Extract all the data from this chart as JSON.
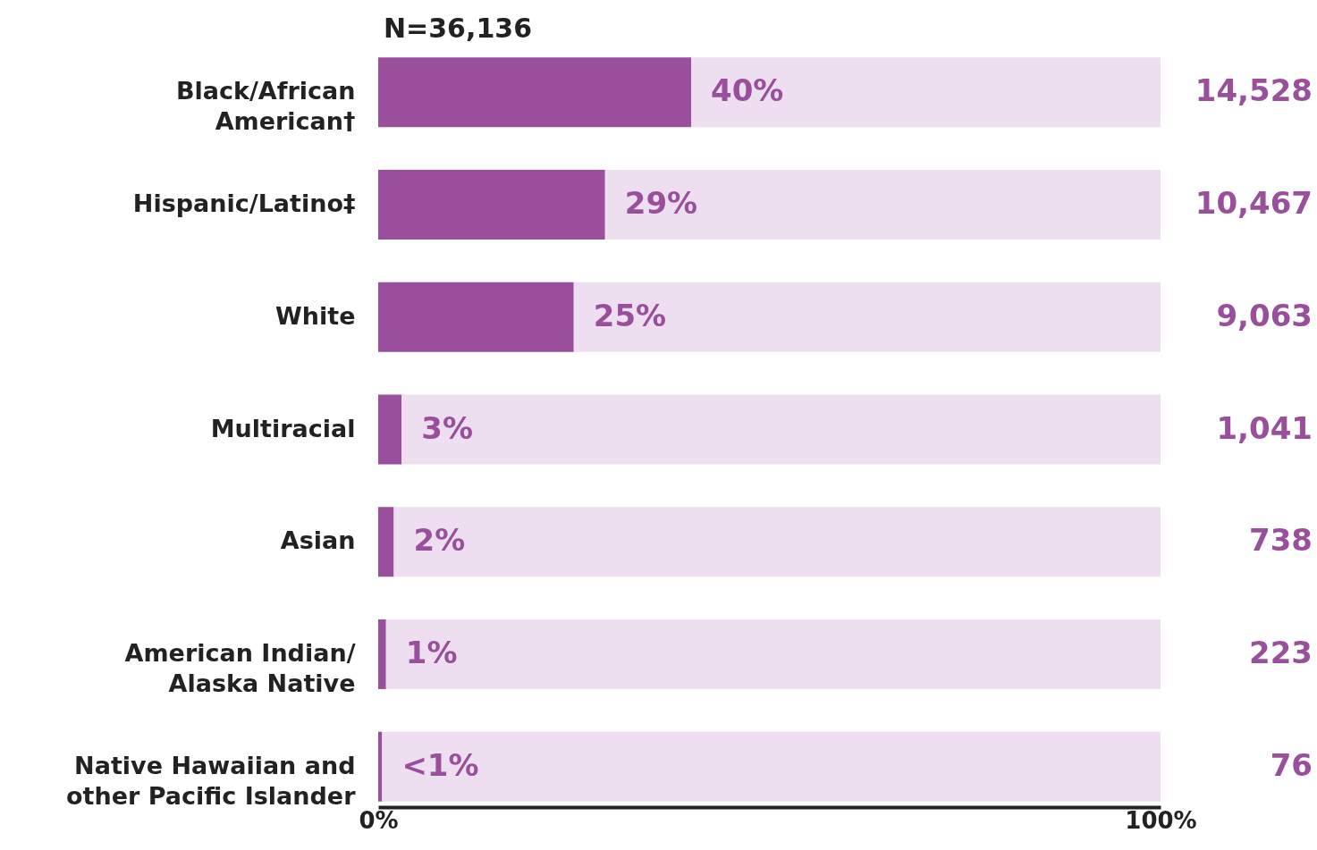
{
  "chart_data": {
    "type": "bar",
    "orientation": "horizontal",
    "stacked": true,
    "title": "N=36,136",
    "categories": [
      "Black/African American†",
      "Hispanic/Latino‡",
      "White",
      "Multiracial",
      "Asian",
      "American Indian/Alaska Native",
      "Native Hawaiian and other Pacific Islander"
    ],
    "series": [
      {
        "color": "#9a4f9c",
        "values": [
          40,
          29,
          25,
          3,
          2,
          1,
          0.5
        ],
        "value_labels": [
          "40%",
          "29%",
          "25%",
          "3%",
          "2%",
          "1%",
          "<1%"
        ]
      },
      {
        "color": "#eedff0",
        "values": [
          60,
          71,
          75,
          97,
          98,
          99,
          99.5
        ]
      }
    ],
    "xlim": [
      0,
      100
    ],
    "xticks": [
      {
        "value": 0,
        "label": "0%"
      },
      {
        "value": 100,
        "label": "100%"
      }
    ],
    "grid": false,
    "annotations": [
      "14,528",
      "10,467",
      "9,063",
      "1,041",
      "738",
      "223",
      "76"
    ]
  }
}
